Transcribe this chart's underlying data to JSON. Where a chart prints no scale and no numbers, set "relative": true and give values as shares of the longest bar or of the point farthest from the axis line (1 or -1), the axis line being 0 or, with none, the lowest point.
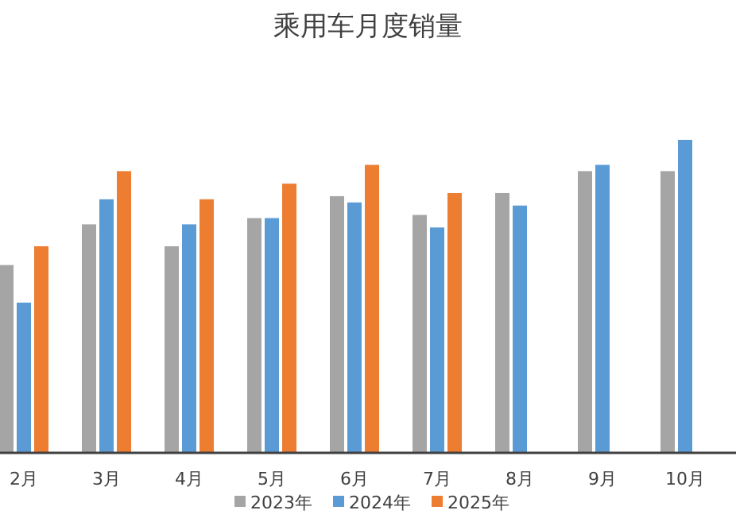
{
  "chart_data": {
    "type": "bar",
    "title": "乘用车月度销量",
    "relative": true,
    "legend": "bottom",
    "categories": [
      "2月",
      "3月",
      "4月",
      "5月",
      "6月",
      "7月",
      "8月",
      "9月",
      "10月"
    ],
    "series": [
      {
        "name": "2023年",
        "color": "#a5a5a5",
        "values": [
          0.6,
          0.73,
          0.66,
          0.75,
          0.82,
          0.76,
          0.83,
          0.9,
          0.9
        ]
      },
      {
        "name": "2024年",
        "color": "#5b9bd5",
        "values": [
          0.48,
          0.81,
          0.73,
          0.75,
          0.8,
          0.72,
          0.79,
          0.92,
          1
        ]
      },
      {
        "name": "2025年",
        "color": "#ed7d31",
        "values": [
          0.66,
          0.9,
          0.81,
          0.86,
          0.92,
          0.83,
          null,
          null,
          null
        ]
      }
    ]
  }
}
